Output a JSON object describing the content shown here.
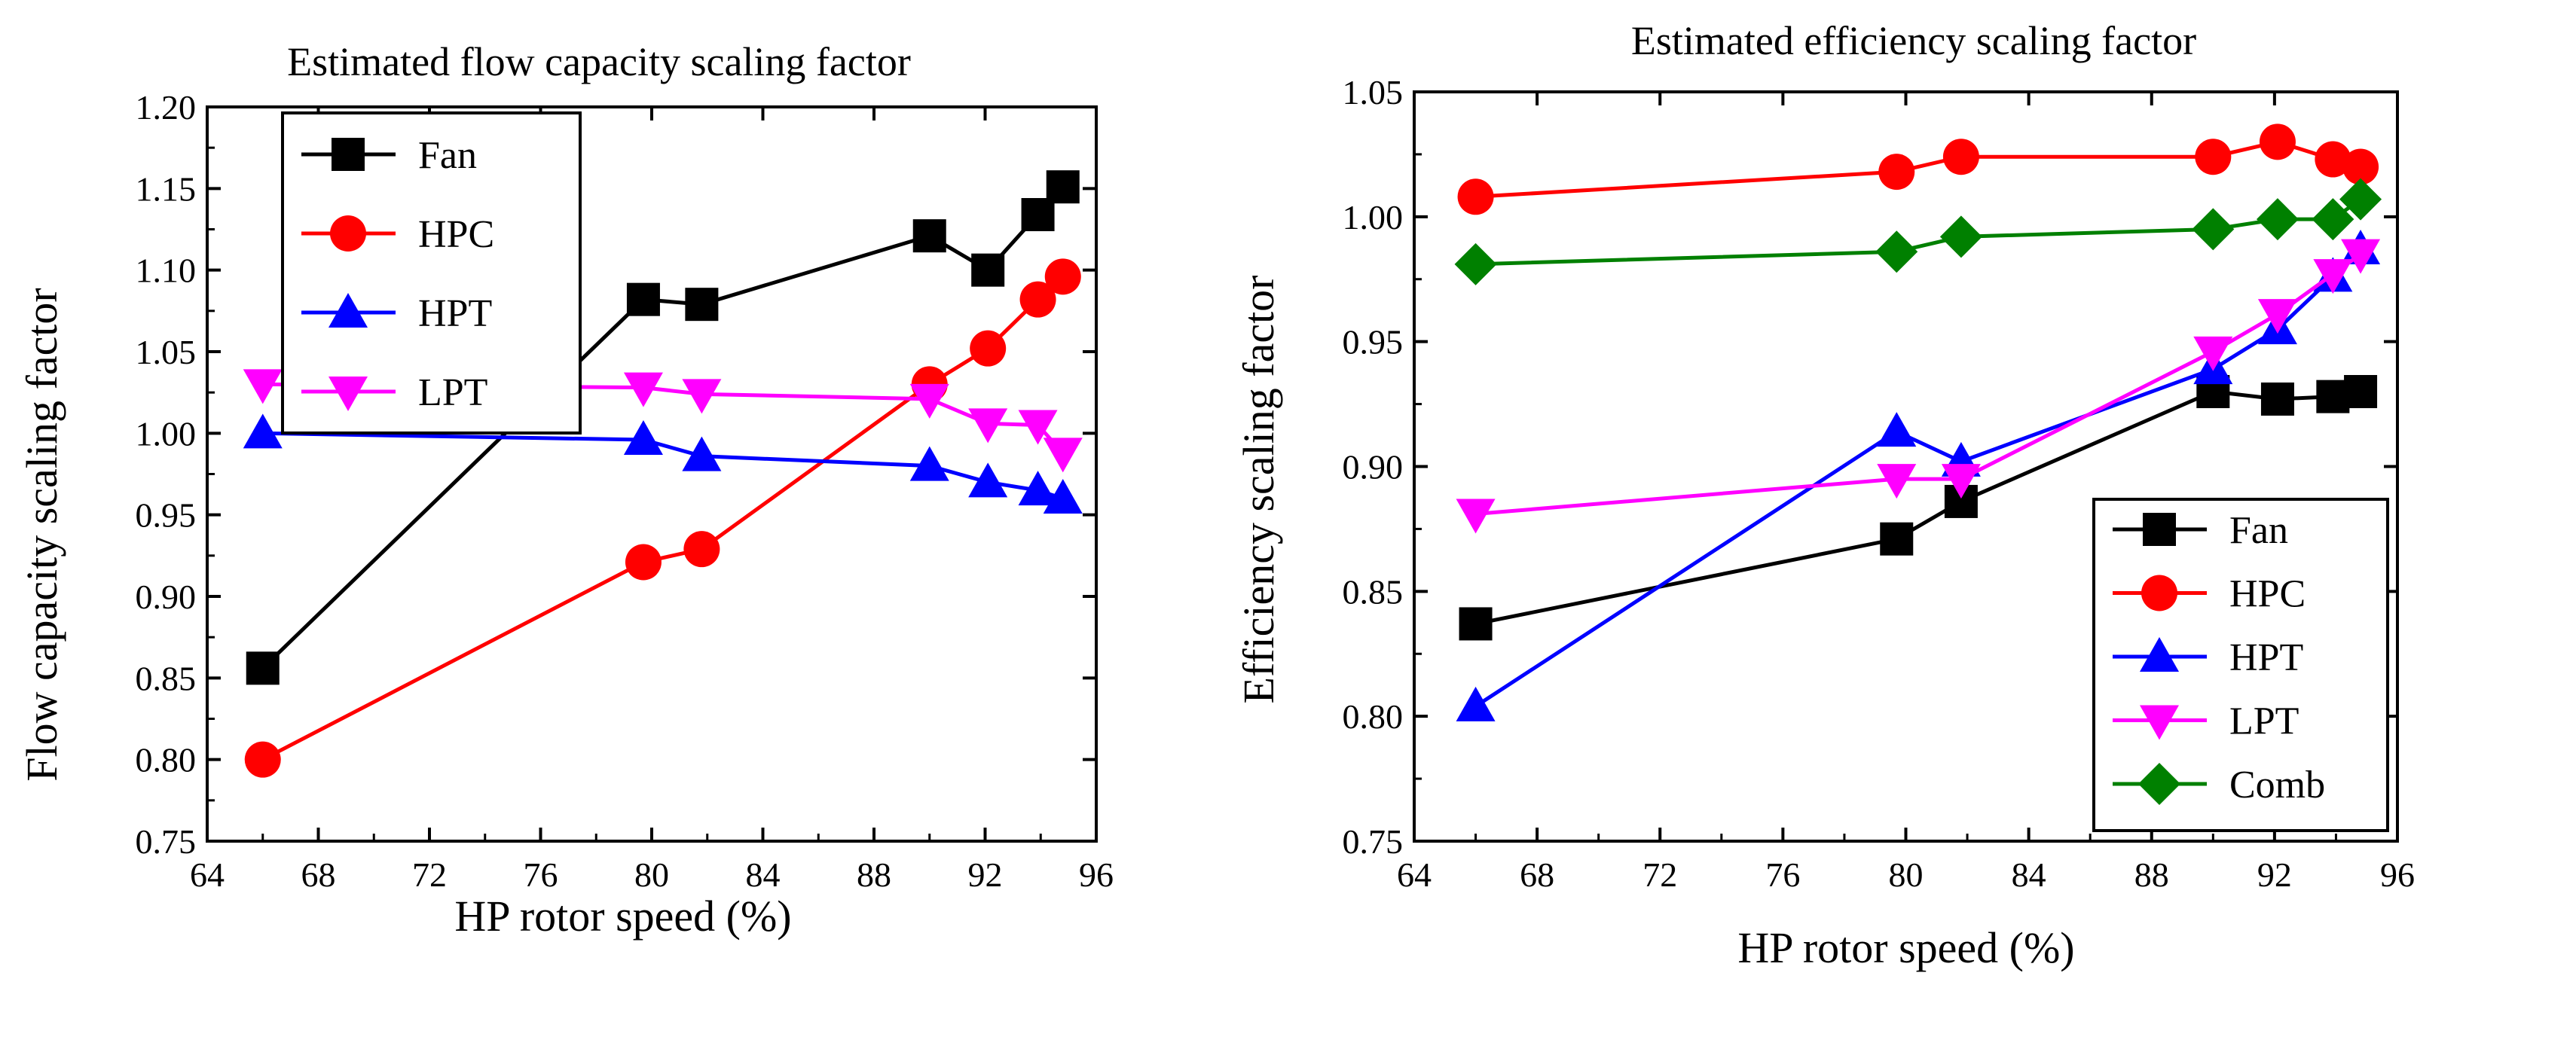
{
  "chart_data": [
    {
      "type": "line",
      "title": "Estimated flow capacity scaling factor",
      "xlabel": "HP rotor speed (%)",
      "ylabel": "Flow capacity scaling factor",
      "xlim": [
        64,
        96
      ],
      "ylim": [
        0.75,
        1.2
      ],
      "xticks": [
        "64",
        "68",
        "72",
        "76",
        "80",
        "84",
        "88",
        "92",
        "96"
      ],
      "yticks": [
        "0.75",
        "0.80",
        "0.85",
        "0.90",
        "0.95",
        "1.00",
        "1.05",
        "1.10",
        "1.15",
        "1.20"
      ],
      "legend_position": "top-left",
      "grid": false,
      "series": [
        {
          "name": "Fan",
          "color": "#000000",
          "marker": "square",
          "x": [
            66,
            79.7,
            81.8,
            90,
            92.1,
            93.9,
            94.8
          ],
          "y": [
            0.856,
            1.082,
            1.079,
            1.121,
            1.1,
            1.134,
            1.151
          ]
        },
        {
          "name": "HPC",
          "color": "#ff0000",
          "marker": "circle",
          "x": [
            66,
            79.7,
            81.8,
            90,
            92.1,
            93.9,
            94.8
          ],
          "y": [
            0.8,
            0.921,
            0.929,
            1.03,
            1.052,
            1.082,
            1.096
          ]
        },
        {
          "name": "HPT",
          "color": "#0000ff",
          "marker": "triangle-up",
          "x": [
            66,
            79.7,
            81.8,
            90,
            92.1,
            93.9,
            94.8
          ],
          "y": [
            1.0,
            0.996,
            0.986,
            0.98,
            0.97,
            0.965,
            0.96
          ]
        },
        {
          "name": "LPT",
          "color": "#ff00ff",
          "marker": "triangle-down",
          "x": [
            66,
            79.7,
            81.8,
            90,
            92.1,
            93.9,
            94.8
          ],
          "y": [
            1.03,
            1.028,
            1.024,
            1.021,
            1.006,
            1.005,
            0.988
          ]
        }
      ]
    },
    {
      "type": "line",
      "title": "Estimated efficiency scaling factor",
      "xlabel": "HP rotor speed (%)",
      "ylabel": "Efficiency scaling factor",
      "xlim": [
        64,
        96
      ],
      "ylim": [
        0.75,
        1.05
      ],
      "xticks": [
        "64",
        "68",
        "72",
        "76",
        "80",
        "84",
        "88",
        "92",
        "96"
      ],
      "yticks": [
        "0.75",
        "0.80",
        "0.85",
        "0.90",
        "0.95",
        "1.00",
        "1.05"
      ],
      "legend_position": "bottom-right",
      "grid": false,
      "series": [
        {
          "name": "Fan",
          "color": "#000000",
          "marker": "square",
          "x": [
            66,
            79.7,
            81.8,
            90,
            92.1,
            93.9,
            94.8
          ],
          "y": [
            0.837,
            0.871,
            0.886,
            0.93,
            0.927,
            0.928,
            0.93
          ]
        },
        {
          "name": "HPC",
          "color": "#ff0000",
          "marker": "circle",
          "x": [
            66,
            79.7,
            81.8,
            90,
            92.1,
            93.9,
            94.8
          ],
          "y": [
            1.008,
            1.018,
            1.024,
            1.024,
            1.03,
            1.023,
            1.02
          ]
        },
        {
          "name": "HPT",
          "color": "#0000ff",
          "marker": "triangle-up",
          "x": [
            66,
            79.7,
            81.8,
            90,
            92.1,
            93.9,
            94.8
          ],
          "y": [
            0.804,
            0.914,
            0.902,
            0.939,
            0.955,
            0.976,
            0.987
          ]
        },
        {
          "name": "LPT",
          "color": "#ff00ff",
          "marker": "triangle-down",
          "x": [
            66,
            79.7,
            81.8,
            90,
            92.1,
            93.9,
            94.8
          ],
          "y": [
            0.881,
            0.895,
            0.895,
            0.946,
            0.961,
            0.977,
            0.985
          ]
        },
        {
          "name": "Comb",
          "color": "#008000",
          "marker": "diamond",
          "x": [
            66,
            79.7,
            81.8,
            90,
            92.1,
            93.9,
            94.8
          ],
          "y": [
            0.981,
            0.986,
            0.992,
            0.995,
            0.999,
            0.999,
            1.007
          ]
        }
      ]
    }
  ]
}
